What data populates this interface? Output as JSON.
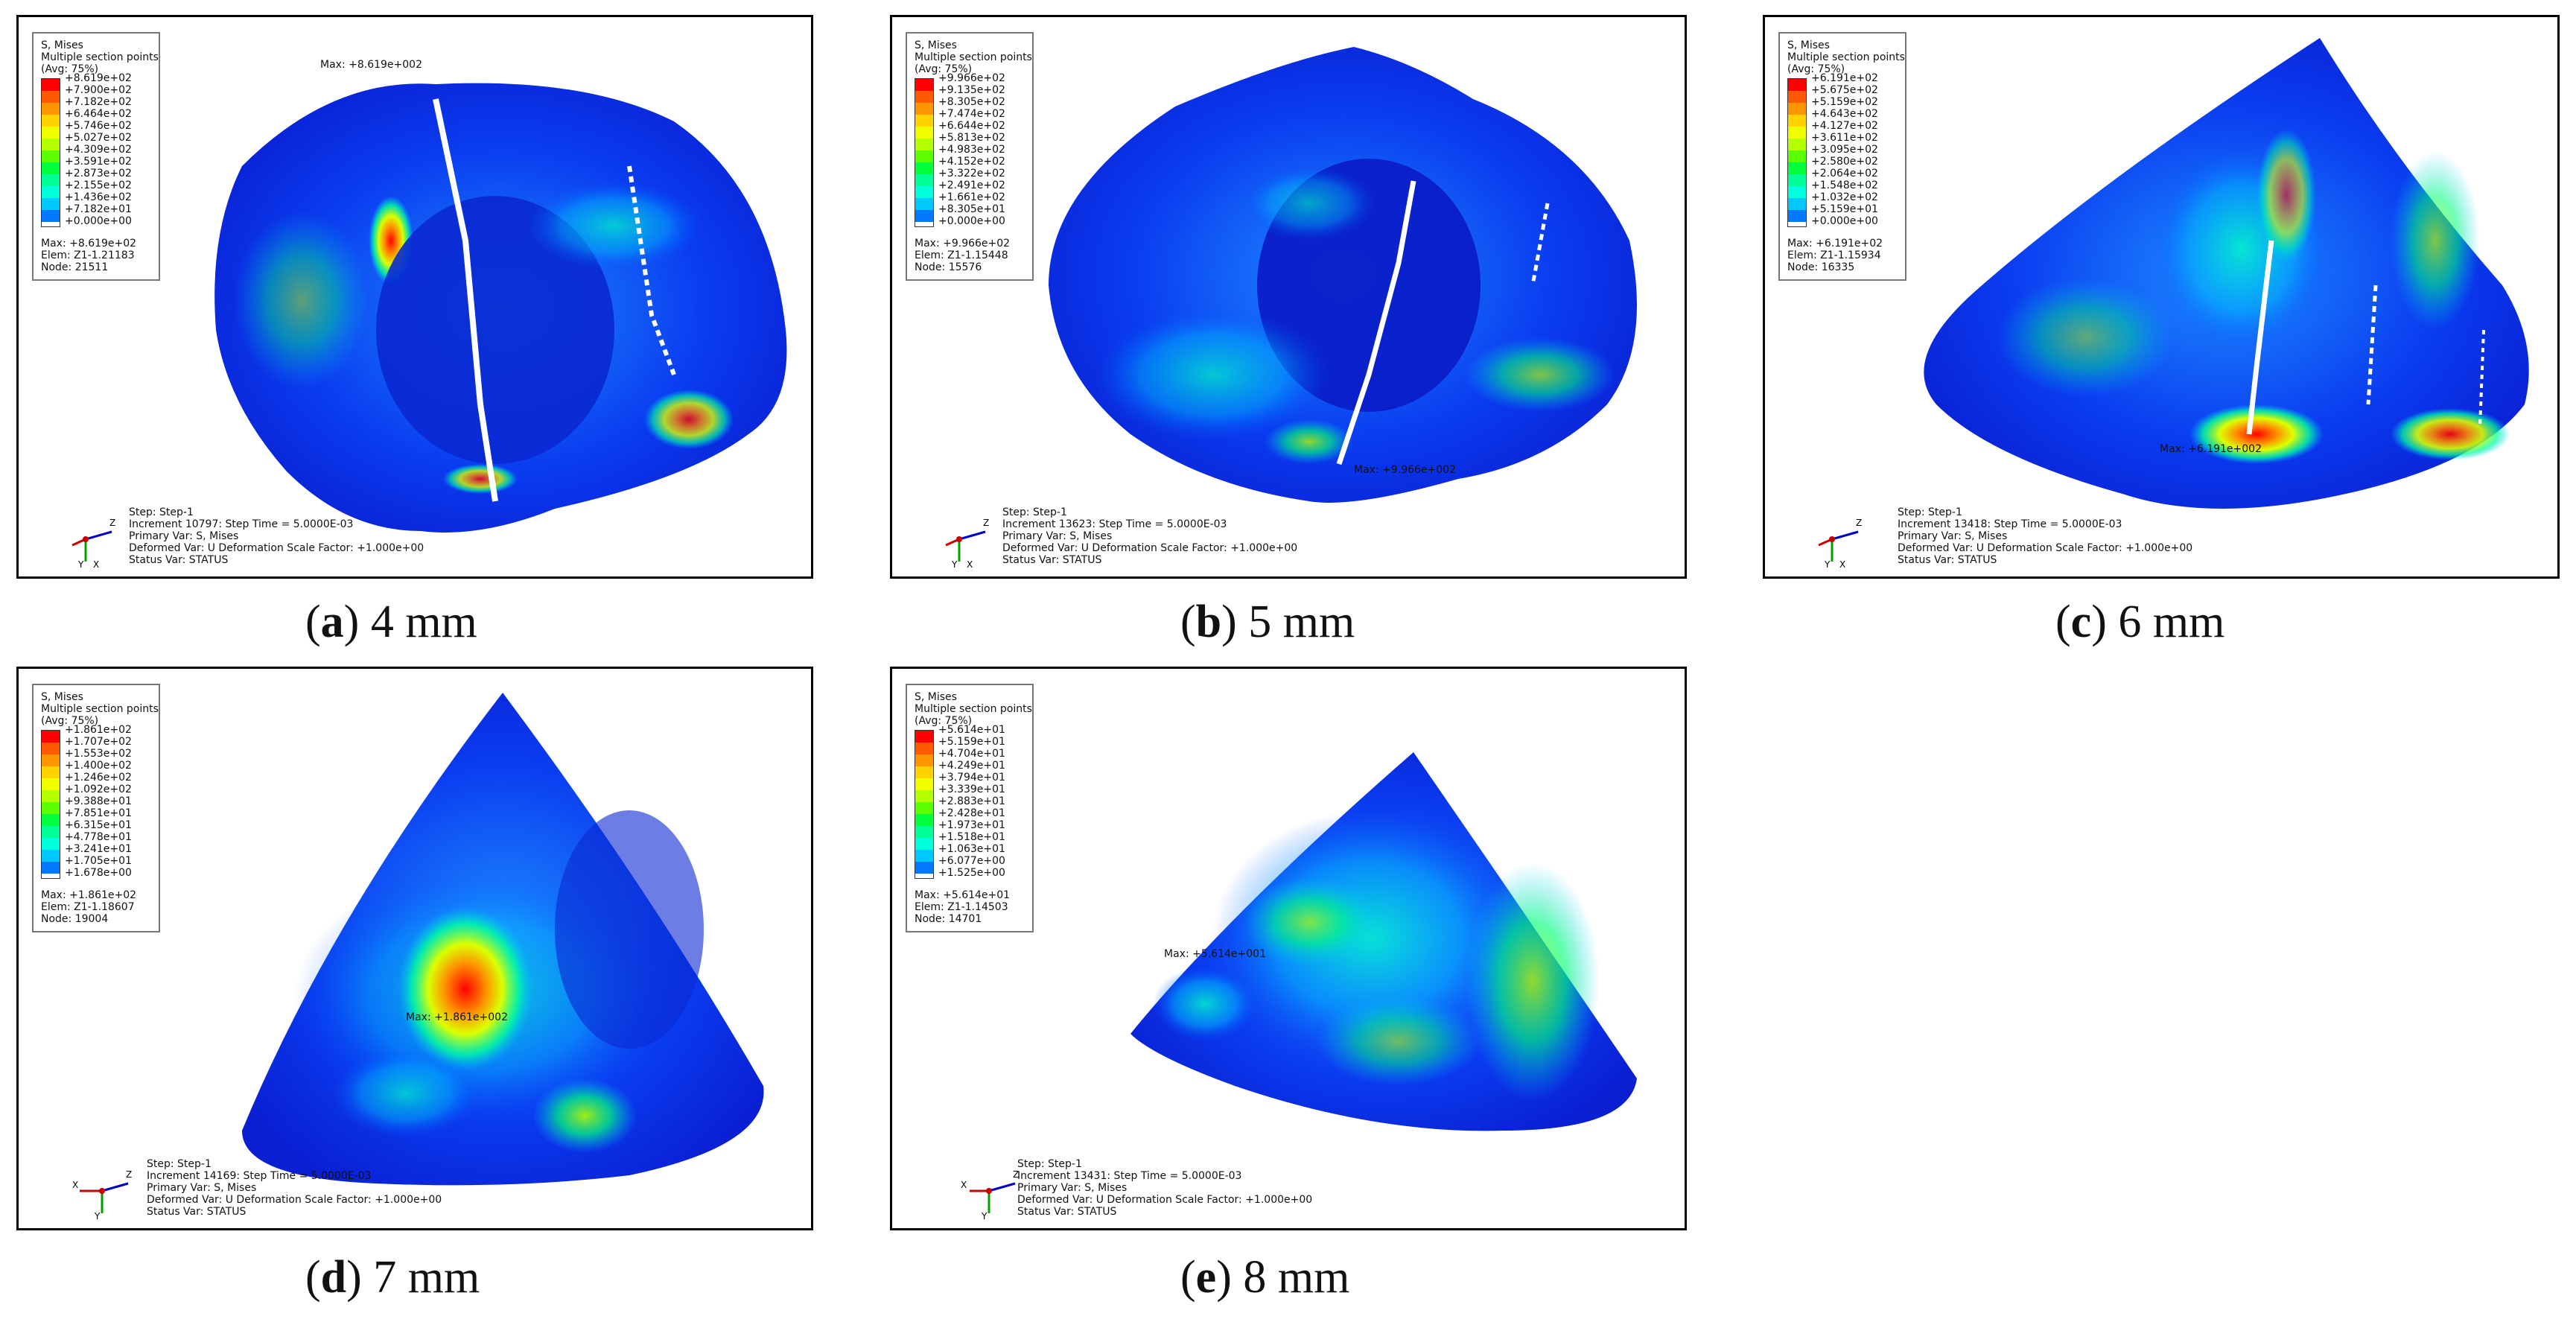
{
  "legend_common": {
    "title": "S, Mises",
    "subtitle": "Multiple section points",
    "avg": "(Avg: 75%)",
    "colors": [
      "#ff0000",
      "#ff5a00",
      "#ff9600",
      "#ffd200",
      "#f0ff00",
      "#b4ff00",
      "#5aff00",
      "#00ff3c",
      "#00ff96",
      "#00ffdc",
      "#00c8ff",
      "#0078ff",
      "#0028ff"
    ]
  },
  "status_common": {
    "step": "Step: Step-1",
    "primary": "Primary Var: S, Mises",
    "deformed": "Deformed Var: U   Deformation Scale Factor: +1.000e+00",
    "statusvar": "Status Var: STATUS"
  },
  "panels": [
    {
      "caption_letter": "a",
      "caption_text": " 4 mm",
      "ticks": [
        "+8.619e+02",
        "+7.900e+02",
        "+7.182e+02",
        "+6.464e+02",
        "+5.746e+02",
        "+5.027e+02",
        "+4.309e+02",
        "+3.591e+02",
        "+2.873e+02",
        "+2.155e+02",
        "+1.436e+02",
        "+7.182e+01",
        "+0.000e+00"
      ],
      "max": "Max: +8.619e+02",
      "elem": "Elem: Z1-1.21183",
      "node": "Node: 21511",
      "increment": "Increment      10797: Step Time =    5.0000E-03",
      "max_label": "Max: +8.619e+002",
      "triad": {
        "a": "Z",
        "b": "Y",
        "c": "X"
      }
    },
    {
      "caption_letter": "b",
      "caption_text": " 5 mm",
      "ticks": [
        "+9.966e+02",
        "+9.135e+02",
        "+8.305e+02",
        "+7.474e+02",
        "+6.644e+02",
        "+5.813e+02",
        "+4.983e+02",
        "+4.152e+02",
        "+3.322e+02",
        "+2.491e+02",
        "+1.661e+02",
        "+8.305e+01",
        "+0.000e+00"
      ],
      "max": "Max: +9.966e+02",
      "elem": "Elem: Z1-1.15448",
      "node": "Node: 15576",
      "increment": "Increment      13623: Step Time =    5.0000E-03",
      "max_label": "Max: +9.966e+002",
      "triad": {
        "a": "Z",
        "b": "Y",
        "c": "X"
      }
    },
    {
      "caption_letter": "c",
      "caption_text": " 6 mm",
      "ticks": [
        "+6.191e+02",
        "+5.675e+02",
        "+5.159e+02",
        "+4.643e+02",
        "+4.127e+02",
        "+3.611e+02",
        "+3.095e+02",
        "+2.580e+02",
        "+2.064e+02",
        "+1.548e+02",
        "+1.032e+02",
        "+5.159e+01",
        "+0.000e+00"
      ],
      "max": "Max: +6.191e+02",
      "elem": "Elem: Z1-1.15934",
      "node": "Node: 16335",
      "increment": "Increment      13418: Step Time =    5.0000E-03",
      "max_label": "Max: +6.191e+002",
      "triad": {
        "a": "Z",
        "b": "Y",
        "c": "X"
      }
    },
    {
      "caption_letter": "d",
      "caption_text": " 7 mm",
      "ticks": [
        "+1.861e+02",
        "+1.707e+02",
        "+1.553e+02",
        "+1.400e+02",
        "+1.246e+02",
        "+1.092e+02",
        "+9.388e+01",
        "+7.851e+01",
        "+6.315e+01",
        "+4.778e+01",
        "+3.241e+01",
        "+1.705e+01",
        "+1.678e+00"
      ],
      "max": "Max: +1.861e+02",
      "elem": "Elem: Z1-1.18607",
      "node": "Node: 19004",
      "increment": "Increment      14169: Step Time =    5.0000E-03",
      "max_label": "Max: +1.861e+002",
      "triad": {
        "a": "Z",
        "b": "Y",
        "c": "X"
      }
    },
    {
      "caption_letter": "e",
      "caption_text": " 8 mm",
      "ticks": [
        "+5.614e+01",
        "+5.159e+01",
        "+4.704e+01",
        "+4.249e+01",
        "+3.794e+01",
        "+3.339e+01",
        "+2.883e+01",
        "+2.428e+01",
        "+1.973e+01",
        "+1.518e+01",
        "+1.063e+01",
        "+6.077e+00",
        "+1.525e+00"
      ],
      "max": "Max: +5.614e+01",
      "elem": "Elem: Z1-1.14503",
      "node": "Node: 14701",
      "increment": "Increment      13431: Step Time =    5.0000E-03",
      "max_label": "Max: +5.614e+001",
      "triad": {
        "a": "Z",
        "b": "Y",
        "c": "X"
      }
    }
  ]
}
